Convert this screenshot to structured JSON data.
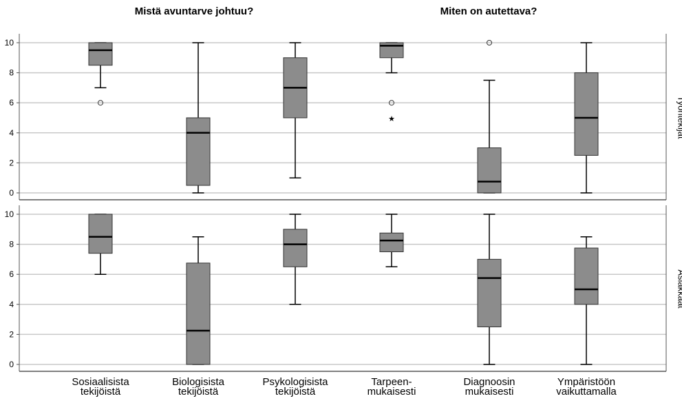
{
  "chart_data": {
    "type": "boxplot",
    "titles": [
      "Mistä avuntarve johtuu?",
      "Miten on autettava?"
    ],
    "categories": [
      [
        "Sosiaalisista",
        "tekijöistä"
      ],
      [
        "Biologisista",
        "tekijöistä"
      ],
      [
        "Psykologisista",
        "tekijöistä"
      ],
      [
        "Tarpeen-",
        "mukaisesti"
      ],
      [
        "Diagnoosin",
        "mukaisesti"
      ],
      [
        "Ympäristöön",
        "vaikuttamalla"
      ]
    ],
    "ylim": [
      0,
      10
    ],
    "yticks": [
      0,
      2,
      4,
      6,
      8,
      10
    ],
    "grid": "horizontal",
    "panels": [
      {
        "name": "Työntekijät",
        "boxes": [
          {
            "min": 7,
            "q1": 8.5,
            "median": 9.5,
            "q3": 10,
            "max": 10,
            "outliers": [
              6
            ],
            "extremes": []
          },
          {
            "min": 0,
            "q1": 0.5,
            "median": 4,
            "q3": 5,
            "max": 10,
            "outliers": [],
            "extremes": []
          },
          {
            "min": 1,
            "q1": 5,
            "median": 7,
            "q3": 9,
            "max": 10,
            "outliers": [],
            "extremes": []
          },
          {
            "min": 8,
            "q1": 9,
            "median": 9.8,
            "q3": 10,
            "max": 10,
            "outliers": [
              6
            ],
            "extremes": [
              5
            ]
          },
          {
            "min": 0,
            "q1": 0,
            "median": 0.75,
            "q3": 3,
            "max": 7.5,
            "outliers": [
              10
            ],
            "extremes": []
          },
          {
            "min": 0,
            "q1": 2.5,
            "median": 5,
            "q3": 8,
            "max": 10,
            "outliers": [],
            "extremes": []
          }
        ]
      },
      {
        "name": "Asiakkaat",
        "boxes": [
          {
            "min": 6,
            "q1": 7.4,
            "median": 8.5,
            "q3": 10,
            "max": 10,
            "outliers": [],
            "extremes": []
          },
          {
            "min": 0,
            "q1": 0,
            "median": 2.25,
            "q3": 6.75,
            "max": 8.5,
            "outliers": [],
            "extremes": []
          },
          {
            "min": 4,
            "q1": 6.5,
            "median": 8,
            "q3": 9,
            "max": 10,
            "outliers": [],
            "extremes": []
          },
          {
            "min": 6.5,
            "q1": 7.5,
            "median": 8.25,
            "q3": 8.75,
            "max": 10,
            "outliers": [],
            "extremes": []
          },
          {
            "min": 0,
            "q1": 2.5,
            "median": 5.75,
            "q3": 7,
            "max": 10,
            "outliers": [],
            "extremes": []
          },
          {
            "min": 0,
            "q1": 4,
            "median": 5,
            "q3": 7.75,
            "max": 8.5,
            "outliers": [],
            "extremes": []
          }
        ]
      }
    ]
  }
}
